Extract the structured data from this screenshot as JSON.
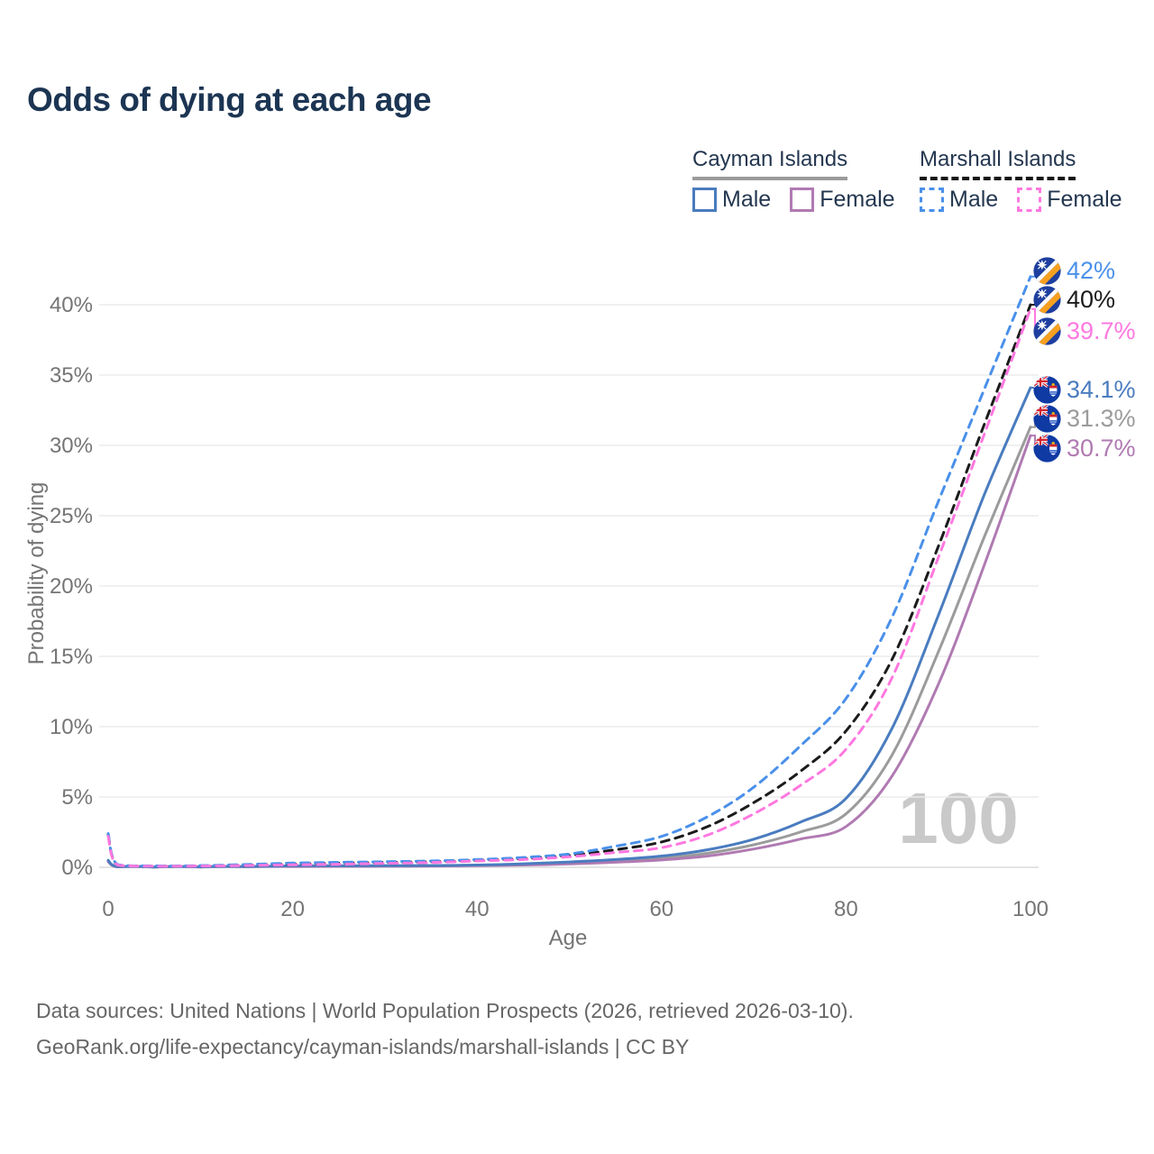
{
  "title": "Odds of dying at each age",
  "watermark": "100",
  "legend": {
    "groups": [
      {
        "name": "Cayman Islands",
        "line_style": "solid",
        "items": [
          {
            "label": "Male",
            "color": "#4a7cbf"
          },
          {
            "label": "Female",
            "color": "#b07ab2"
          }
        ]
      },
      {
        "name": "Marshall Islands",
        "line_style": "dashed",
        "items": [
          {
            "label": "Male",
            "color": "#4a90ea"
          },
          {
            "label": "Female",
            "color": "#ff78e0"
          }
        ]
      }
    ]
  },
  "footer": {
    "line1": "Data sources: United Nations | World Population Prospects (2026, retrieved 2026-03-10).",
    "line2": "GeoRank.org/life-expectancy/cayman-islands/marshall-islands | CC BY"
  },
  "chart_data": {
    "type": "line",
    "title": "Odds of dying at each age",
    "xlabel": "Age",
    "ylabel": "Probability of dying",
    "units": "percent",
    "xlim": [
      0,
      100
    ],
    "ylim": [
      0,
      43
    ],
    "grid": "horizontal",
    "legend_position": "top-right",
    "x_ticks": [
      "0",
      "20",
      "40",
      "60",
      "80",
      "100"
    ],
    "x_tick_values": [
      0,
      20,
      40,
      60,
      80,
      100
    ],
    "y_ticks": [
      "0%",
      "5%",
      "10%",
      "15%",
      "20%",
      "25%",
      "30%",
      "35%",
      "40%"
    ],
    "y_tick_values": [
      0,
      5,
      10,
      15,
      20,
      25,
      30,
      35,
      40
    ],
    "x": [
      0,
      1,
      5,
      10,
      15,
      20,
      25,
      30,
      35,
      40,
      45,
      50,
      55,
      60,
      65,
      70,
      75,
      80,
      85,
      90,
      95,
      100
    ],
    "series": [
      {
        "name": "Marshall Islands Male",
        "country": "Marshall Islands",
        "sex": "male",
        "line": "dashed",
        "color": "#4a90ea",
        "end_label": "42%",
        "end_value": 42.0,
        "values": [
          2.4,
          0.2,
          0.1,
          0.12,
          0.2,
          0.3,
          0.35,
          0.4,
          0.45,
          0.55,
          0.7,
          0.95,
          1.5,
          2.2,
          3.6,
          5.7,
          8.6,
          12.0,
          17.8,
          26.0,
          34.0,
          42.0
        ]
      },
      {
        "name": "Marshall Islands Both sexes",
        "country": "Marshall Islands",
        "sex": "both",
        "line": "dashed",
        "color": "#1b1b1b",
        "end_label": "40%",
        "end_value": 40.0,
        "values": [
          2.3,
          0.18,
          0.09,
          0.1,
          0.16,
          0.24,
          0.3,
          0.35,
          0.4,
          0.5,
          0.62,
          0.85,
          1.25,
          1.8,
          2.9,
          4.6,
          6.8,
          9.7,
          14.8,
          22.8,
          31.5,
          40.0
        ]
      },
      {
        "name": "Marshall Islands Female",
        "country": "Marshall Islands",
        "sex": "female",
        "line": "dashed",
        "color": "#ff78e0",
        "end_label": "39.7%",
        "end_value": 39.7,
        "values": [
          2.2,
          0.16,
          0.08,
          0.09,
          0.13,
          0.18,
          0.22,
          0.28,
          0.34,
          0.45,
          0.55,
          0.75,
          1.05,
          1.4,
          2.3,
          3.8,
          5.8,
          8.4,
          13.5,
          22.0,
          30.8,
          39.7
        ]
      },
      {
        "name": "Cayman Islands Male",
        "country": "Cayman Islands",
        "sex": "male",
        "line": "solid",
        "color": "#4a7cbf",
        "end_label": "34.1%",
        "end_value": 34.1,
        "values": [
          0.5,
          0.05,
          0.02,
          0.03,
          0.06,
          0.1,
          0.11,
          0.12,
          0.13,
          0.16,
          0.25,
          0.38,
          0.55,
          0.8,
          1.25,
          2.0,
          3.2,
          4.9,
          9.9,
          17.9,
          26.5,
          34.1
        ]
      },
      {
        "name": "Cayman Islands Both sexes",
        "country": "Cayman Islands",
        "sex": "both",
        "line": "solid",
        "color": "#9b9b9b",
        "end_label": "31.3%",
        "end_value": 31.3,
        "values": [
          0.45,
          0.04,
          0.02,
          0.025,
          0.05,
          0.08,
          0.09,
          0.1,
          0.11,
          0.14,
          0.2,
          0.3,
          0.45,
          0.65,
          1.0,
          1.6,
          2.5,
          3.8,
          8.0,
          15.3,
          23.5,
          31.3
        ]
      },
      {
        "name": "Cayman Islands Female",
        "country": "Cayman Islands",
        "sex": "female",
        "line": "solid",
        "color": "#b07ab2",
        "end_label": "30.7%",
        "end_value": 30.7,
        "values": [
          0.4,
          0.035,
          0.015,
          0.02,
          0.04,
          0.06,
          0.07,
          0.08,
          0.09,
          0.12,
          0.16,
          0.24,
          0.36,
          0.52,
          0.8,
          1.3,
          2.0,
          2.9,
          6.5,
          13.0,
          21.5,
          30.7
        ]
      }
    ]
  }
}
